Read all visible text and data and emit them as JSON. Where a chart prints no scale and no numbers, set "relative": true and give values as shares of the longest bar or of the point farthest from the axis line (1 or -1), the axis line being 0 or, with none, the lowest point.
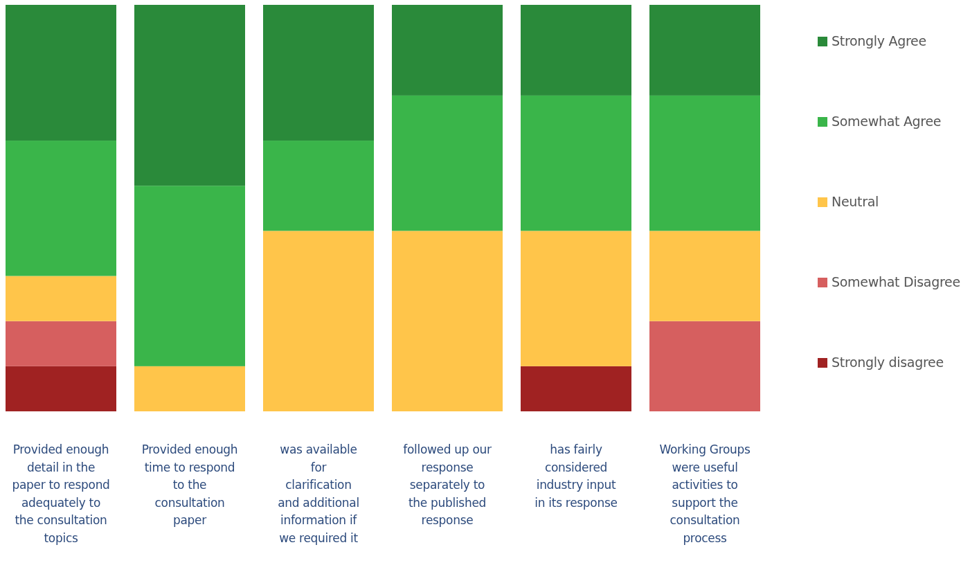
{
  "chart_data": {
    "type": "bar",
    "stacked": true,
    "relative": true,
    "legend": "right",
    "categories": [
      "Provided enough detail in the paper to respond adequately to the consultation topics",
      "Provided enough time to respond to the consultation paper",
      "was available for clarification and additional information if we required it",
      "followed up our response separately to the published response",
      "has fairly considered industry input in its response",
      "Working Groups were useful activities to support the consultation process"
    ],
    "series": [
      {
        "name": "Strongly disagree",
        "color": "#a02222",
        "values": [
          0.111,
          null,
          null,
          null,
          0.111,
          null
        ]
      },
      {
        "name": "Somewhat Disagree",
        "color": "#d65f5f",
        "values": [
          0.111,
          null,
          null,
          null,
          null,
          0.222
        ]
      },
      {
        "name": "Neutral",
        "color": "#ffc54a",
        "values": [
          0.111,
          0.111,
          0.444,
          0.444,
          0.333,
          0.222
        ]
      },
      {
        "name": "Somewhat Agree",
        "color": "#3ab54a",
        "values": [
          0.333,
          0.444,
          0.222,
          0.333,
          0.333,
          0.333
        ]
      },
      {
        "name": "Strongly Agree",
        "color": "#2a8a3a",
        "values": [
          0.334,
          0.445,
          0.334,
          0.223,
          0.223,
          0.223
        ]
      }
    ]
  }
}
